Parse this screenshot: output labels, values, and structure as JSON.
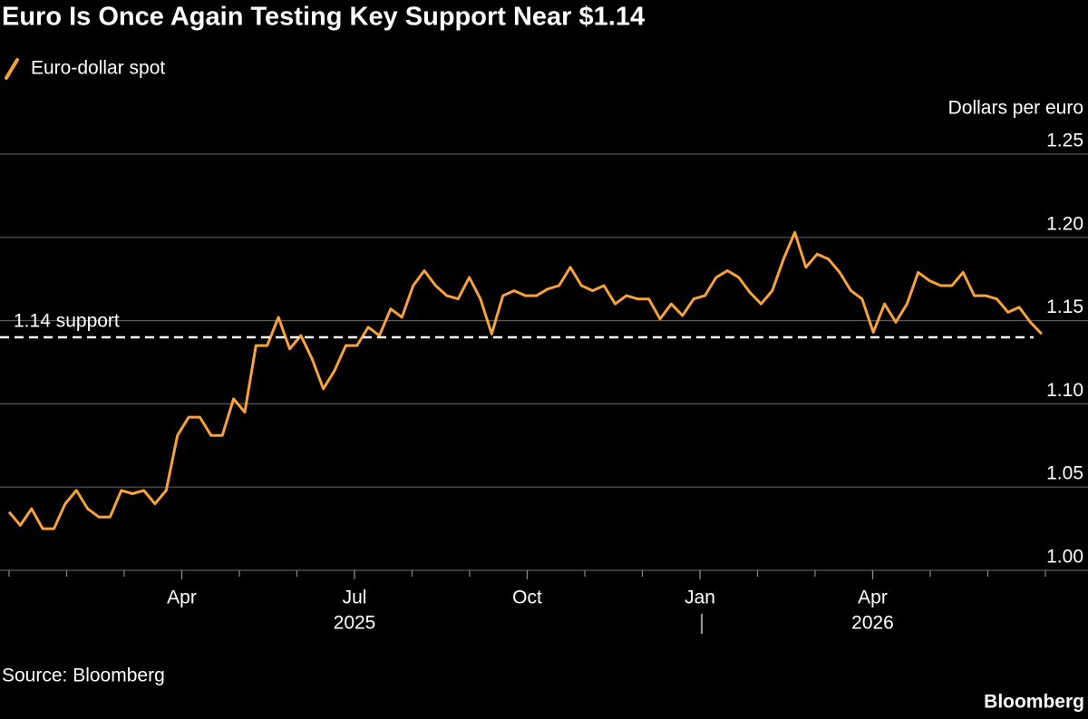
{
  "chart_data": {
    "type": "line",
    "title": "Euro Is Once Again Testing Key Support Near $1.14",
    "y_axis_label": "Dollars per euro",
    "source": "Source: Bloomberg",
    "brand": "Bloomberg",
    "xlim": [
      "2025-01",
      "2026-06"
    ],
    "xticks": [
      {
        "value": "2025-04",
        "label": "Apr"
      },
      {
        "value": "2025-07",
        "label": "Jul"
      },
      {
        "value": "2025-10",
        "label": "Oct"
      },
      {
        "value": "2026-01",
        "label": "Jan"
      },
      {
        "value": "2026-04",
        "label": "Apr"
      }
    ],
    "year_labels": [
      {
        "value": "2025-07",
        "label": "2025"
      },
      {
        "value": "2026-04",
        "label": "2026"
      }
    ],
    "ylim": [
      1.0,
      1.25
    ],
    "yticks": [
      {
        "value": 1,
        "label": "1.00"
      },
      1.05,
      {
        "value": 1.1,
        "label": "1.10"
      },
      1.15,
      {
        "value": 1.2,
        "label": "1.20"
      },
      1.25
    ],
    "grid": true,
    "support": {
      "value": 1.14,
      "label": "1.14 support"
    },
    "series": [
      {
        "name": "Euro-dollar spot",
        "color": "#f7a23b",
        "values": [
          1.035,
          1.027,
          1.037,
          1.025,
          1.025,
          1.04,
          1.048,
          1.037,
          1.032,
          1.032,
          1.048,
          1.046,
          1.048,
          1.04,
          1.048,
          1.081,
          1.092,
          1.092,
          1.081,
          1.081,
          1.103,
          1.095,
          1.135,
          1.135,
          1.152,
          1.133,
          1.141,
          1.127,
          1.109,
          1.12,
          1.135,
          1.135,
          1.146,
          1.141,
          1.157,
          1.152,
          1.171,
          1.18,
          1.171,
          1.165,
          1.163,
          1.176,
          1.163,
          1.142,
          1.165,
          1.168,
          1.165,
          1.165,
          1.169,
          1.171,
          1.182,
          1.171,
          1.168,
          1.171,
          1.16,
          1.165,
          1.163,
          1.163,
          1.151,
          1.16,
          1.153,
          1.163,
          1.165,
          1.176,
          1.18,
          1.176,
          1.167,
          1.16,
          1.168,
          1.187,
          1.203,
          1.182,
          1.19,
          1.187,
          1.179,
          1.168,
          1.163,
          1.143,
          1.16,
          1.149,
          1.16,
          1.179,
          1.174,
          1.171,
          1.171,
          1.179,
          1.165,
          1.165,
          1.163,
          1.155,
          1.158,
          1.149,
          1.142
        ]
      }
    ]
  }
}
